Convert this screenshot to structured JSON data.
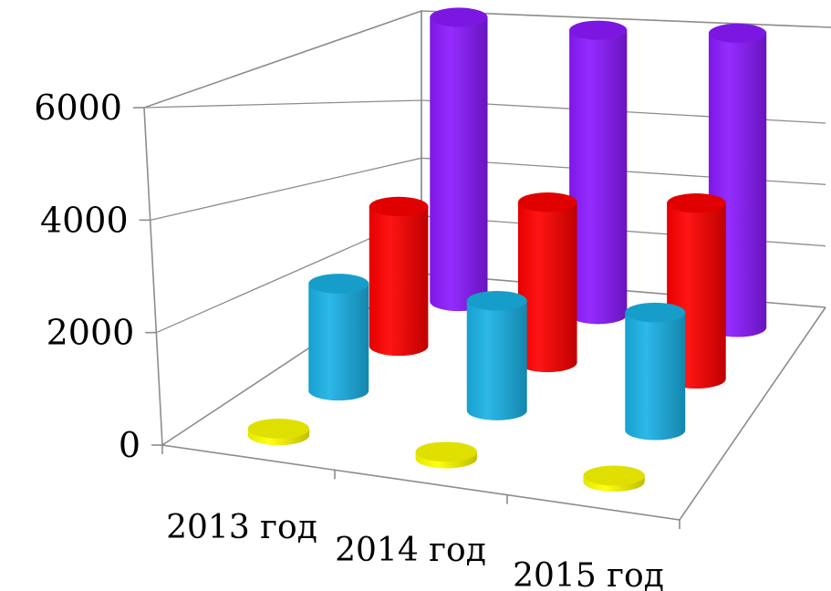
{
  "chart_data": {
    "type": "bar",
    "style": "3d-cylinder",
    "categories": [
      "2013 год",
      "2014 год",
      "2015 год"
    ],
    "series": [
      {
        "values": [
          120,
          120,
          110
        ],
        "color": "#ffff00"
      },
      {
        "values": [
          2000,
          2050,
          2200
        ],
        "color": "#1ab2e6"
      },
      {
        "values": [
          2700,
          3100,
          3400
        ],
        "color": "#ff0000"
      },
      {
        "values": [
          5700,
          5700,
          5900
        ],
        "color": "#8c1aff"
      }
    ],
    "yticks": [
      0,
      2000,
      4000,
      6000
    ],
    "ylim": [
      0,
      6000
    ],
    "grid": true,
    "legend": "none",
    "title": "",
    "xlabel": "",
    "ylabel": ""
  }
}
